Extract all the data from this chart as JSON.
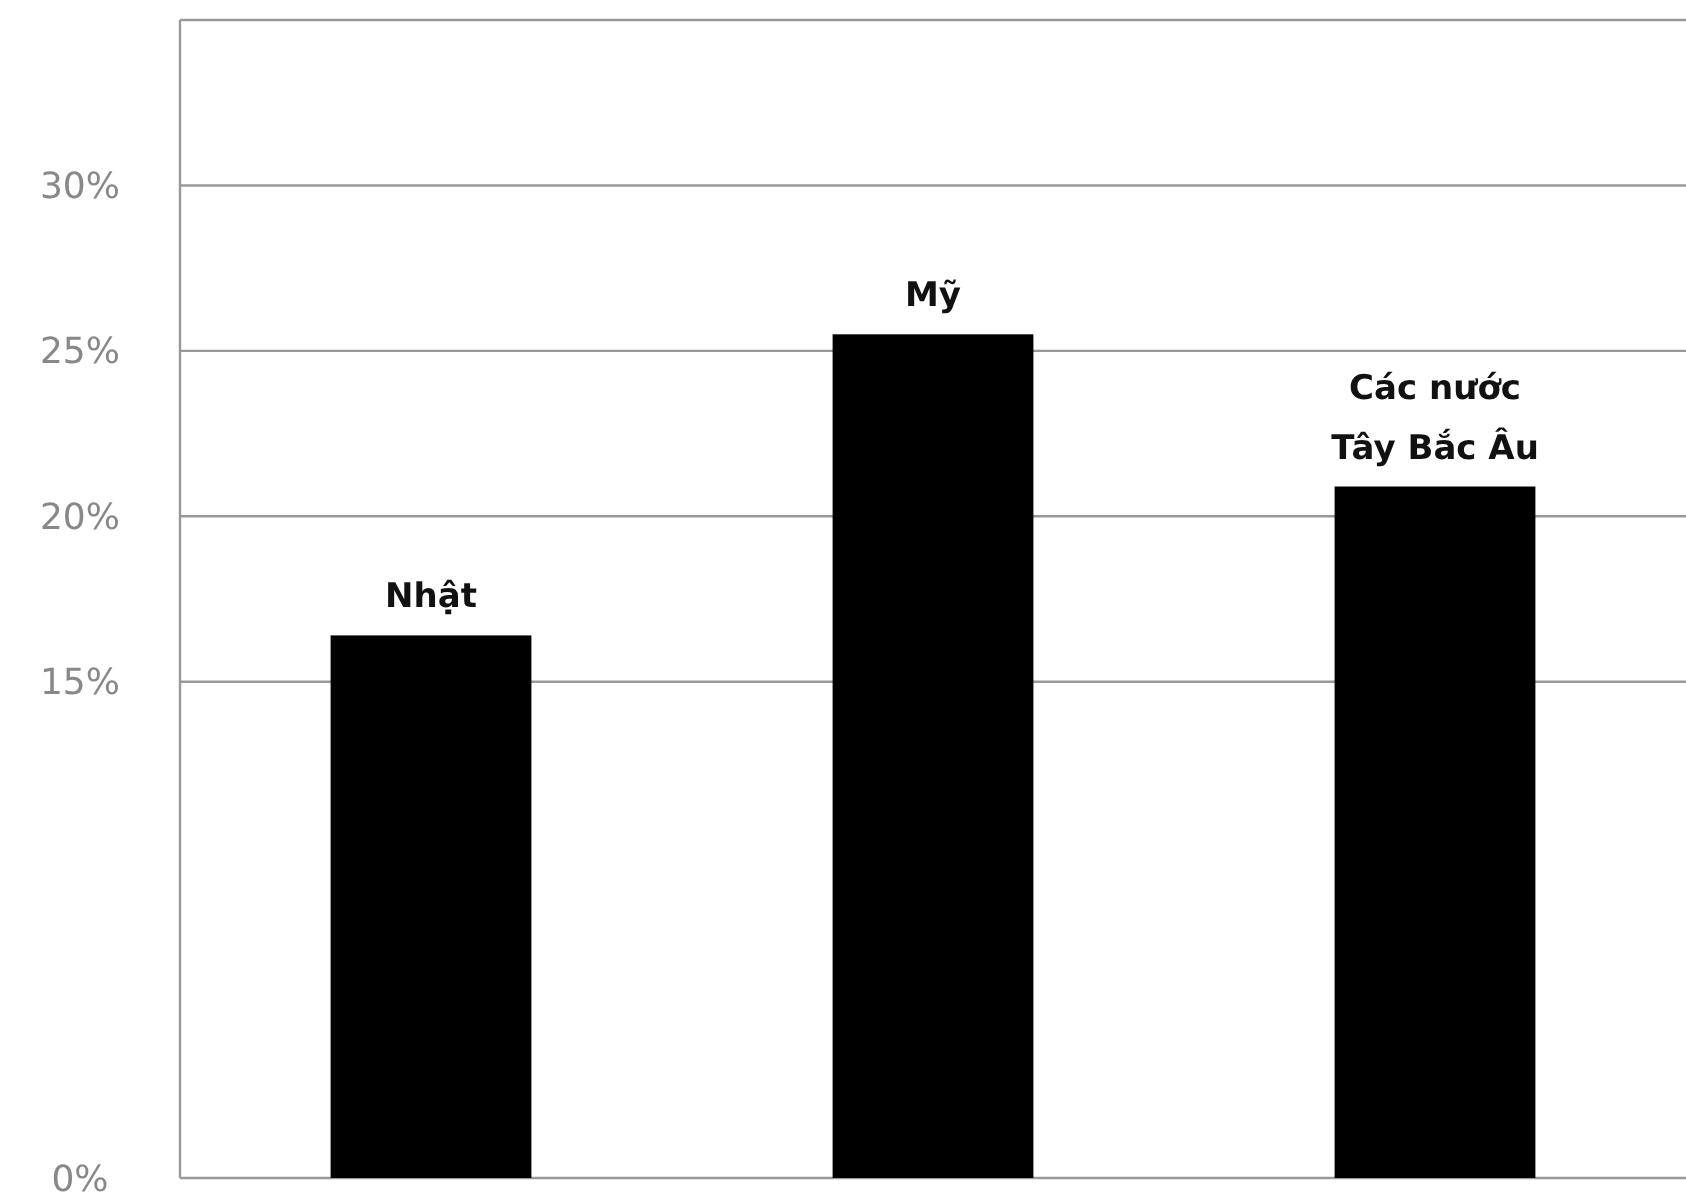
{
  "chart_data": {
    "type": "bar",
    "categories": [
      "Nhật",
      "Mỹ",
      "Các nước Tây Bắc Âu"
    ],
    "values": [
      16.4,
      25.5,
      20.9
    ],
    "color": "#000000",
    "ylim": [
      0,
      35
    ],
    "yticks": [
      {
        "value": 0,
        "label": "0%"
      },
      {
        "value": 15,
        "label": "15%"
      },
      {
        "value": 20,
        "label": "20%"
      },
      {
        "value": 25,
        "label": "25%"
      },
      {
        "value": 30,
        "label": "30%"
      }
    ],
    "grid": "y"
  }
}
